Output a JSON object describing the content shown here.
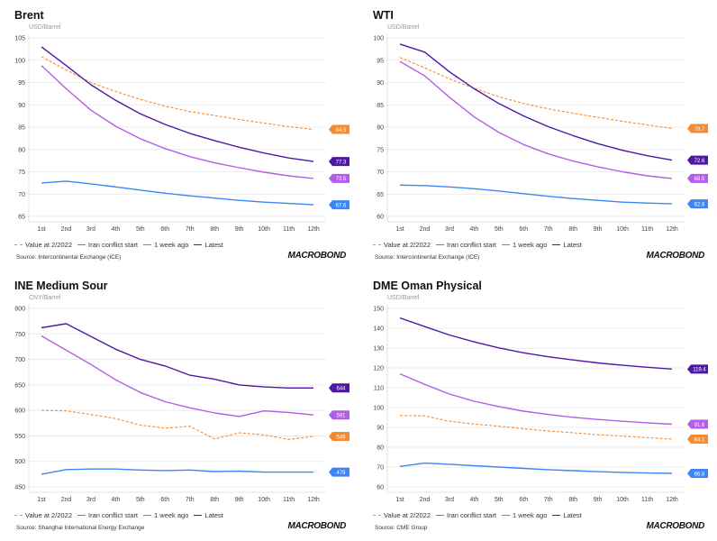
{
  "brand": "MACROBOND",
  "colors": {
    "value_2022": "#f58a33",
    "iran": "#3d86f5",
    "week_ago": "#b35ee6",
    "latest": "#4e18a5"
  },
  "chart_data": [
    {
      "type": "line",
      "title": "Brent",
      "ylabel": "USD/Barrel",
      "ylim": [
        65,
        105
      ],
      "yticks": [
        65,
        70,
        75,
        80,
        85,
        90,
        95,
        100,
        105
      ],
      "source": "Source: Intercontinental Exchange (ICE)",
      "categories": [
        "1st",
        "2nd",
        "3rd",
        "4th",
        "5th",
        "6th",
        "7th",
        "8th",
        "9th",
        "10th",
        "11th",
        "12th"
      ],
      "series": [
        {
          "name": "Value at 2/2022",
          "key": "value_2022",
          "dashed": true,
          "values": [
            100.8,
            97.8,
            95,
            93,
            91.2,
            89.7,
            88.5,
            87.6,
            86.7,
            85.9,
            85.1,
            84.5
          ],
          "end_label": "84.5"
        },
        {
          "name": "Iran conflict start",
          "key": "iran",
          "values": [
            72.5,
            72.9,
            72.3,
            71.6,
            70.9,
            70.2,
            69.6,
            69.1,
            68.6,
            68.2,
            67.9,
            67.6
          ],
          "end_label": "67.6"
        },
        {
          "name": "1 week ago",
          "key": "week_ago",
          "values": [
            98.8,
            93.6,
            88.8,
            85.2,
            82.4,
            80.2,
            78.4,
            77,
            75.9,
            74.9,
            74.1,
            73.5
          ],
          "end_label": "73.5"
        },
        {
          "name": "Latest",
          "key": "latest",
          "values": [
            103,
            98.8,
            94.5,
            91,
            88,
            85.6,
            83.6,
            82,
            80.5,
            79.2,
            78.1,
            77.3
          ],
          "end_label": "77.3"
        }
      ]
    },
    {
      "type": "line",
      "title": "WTI",
      "ylabel": "USD/Barrel",
      "ylim": [
        60,
        100
      ],
      "yticks": [
        60,
        65,
        70,
        75,
        80,
        85,
        90,
        95,
        100
      ],
      "source": "Source: Intercontinental Exchange (ICE)",
      "categories": [
        "1st",
        "2nd",
        "3rd",
        "4th",
        "5th",
        "6th",
        "7th",
        "8th",
        "9th",
        "10th",
        "11th",
        "12th"
      ],
      "series": [
        {
          "name": "Value at 2/2022",
          "key": "value_2022",
          "dashed": true,
          "values": [
            95.6,
            93.3,
            90.8,
            88.7,
            86.8,
            85.3,
            84.1,
            83.1,
            82.2,
            81.3,
            80.5,
            79.7
          ],
          "end_label": "79.7"
        },
        {
          "name": "Iran conflict start",
          "key": "iran",
          "values": [
            67,
            66.9,
            66.6,
            66.2,
            65.7,
            65.1,
            64.5,
            64,
            63.6,
            63.2,
            63,
            62.8
          ],
          "end_label": "62.8"
        },
        {
          "name": "1 week ago",
          "key": "week_ago",
          "values": [
            94.7,
            91.5,
            86.7,
            82.3,
            78.8,
            76.1,
            74,
            72.4,
            71.1,
            70,
            69.1,
            68.5
          ],
          "end_label": "68.5"
        },
        {
          "name": "Latest",
          "key": "latest",
          "values": [
            98.6,
            96.8,
            92.4,
            88.6,
            85.3,
            82.5,
            80.1,
            78.1,
            76.3,
            74.8,
            73.6,
            72.6
          ],
          "end_label": "72.6"
        }
      ]
    },
    {
      "type": "line",
      "title": "INE Medium Sour",
      "ylabel": "CNY/Barrel",
      "ylim": [
        450,
        800
      ],
      "yticks": [
        450,
        500,
        550,
        600,
        650,
        700,
        750,
        800
      ],
      "source": "Source: Shanghai International Energy Exchange",
      "categories": [
        "1st",
        "2nd",
        "3rd",
        "4th",
        "5th",
        "6th",
        "7th",
        "8th",
        "9th",
        "10th",
        "11th",
        "12th"
      ],
      "series": [
        {
          "name": "Value at 2/2022",
          "key": "value_2022",
          "dashed": true,
          "values": [
            600,
            599,
            592,
            584,
            571,
            565,
            569,
            544,
            556,
            552,
            543,
            549
          ],
          "end_label": "549"
        },
        {
          "name": "Iran conflict start",
          "key": "iran",
          "values": [
            475,
            484,
            485,
            485,
            483,
            482,
            483,
            480,
            481,
            479,
            479,
            479
          ],
          "end_label": "479"
        },
        {
          "name": "1 week ago",
          "key": "week_ago",
          "values": [
            746,
            718,
            690,
            660,
            635,
            617,
            605,
            595,
            588,
            599,
            596,
            591
          ],
          "end_label": "591"
        },
        {
          "name": "Latest",
          "key": "latest",
          "values": [
            762,
            770,
            745,
            720,
            700,
            687,
            669,
            661,
            650,
            646,
            644,
            644
          ],
          "end_label": "644"
        }
      ]
    },
    {
      "type": "line",
      "title": "DME Oman Physical",
      "ylabel": "USD/Barrel",
      "ylim": [
        60,
        150
      ],
      "yticks": [
        60,
        70,
        80,
        90,
        100,
        110,
        120,
        130,
        140,
        150
      ],
      "source": "Source: CME Group",
      "categories": [
        "1st",
        "2nd",
        "3rd",
        "4th",
        "5th",
        "6th",
        "7th",
        "8th",
        "9th",
        "10th",
        "11th",
        "12th"
      ],
      "series": [
        {
          "name": "Value at 2/2022",
          "key": "value_2022",
          "dashed": true,
          "values": [
            96,
            95.8,
            93.1,
            91.7,
            90.6,
            89.3,
            88.2,
            87.3,
            86.3,
            85.6,
            84.8,
            84.1
          ],
          "end_label": "84.1"
        },
        {
          "name": "Iran conflict start",
          "key": "iran",
          "values": [
            70.3,
            72,
            71.4,
            70.7,
            70,
            69.3,
            68.7,
            68.2,
            67.7,
            67.3,
            67,
            66.8
          ],
          "end_label": "66.8"
        },
        {
          "name": "1 week ago",
          "key": "week_ago",
          "values": [
            117,
            111.7,
            106.8,
            103.2,
            100.5,
            98.2,
            96.5,
            95.1,
            94,
            93.1,
            92.3,
            91.6
          ],
          "end_label": "91.6"
        },
        {
          "name": "Latest",
          "key": "latest",
          "values": [
            145.2,
            140.8,
            136.6,
            133.1,
            130.1,
            127.6,
            125.6,
            124,
            122.5,
            121.3,
            120.3,
            119.4
          ],
          "end_label": "119.4"
        }
      ]
    }
  ]
}
